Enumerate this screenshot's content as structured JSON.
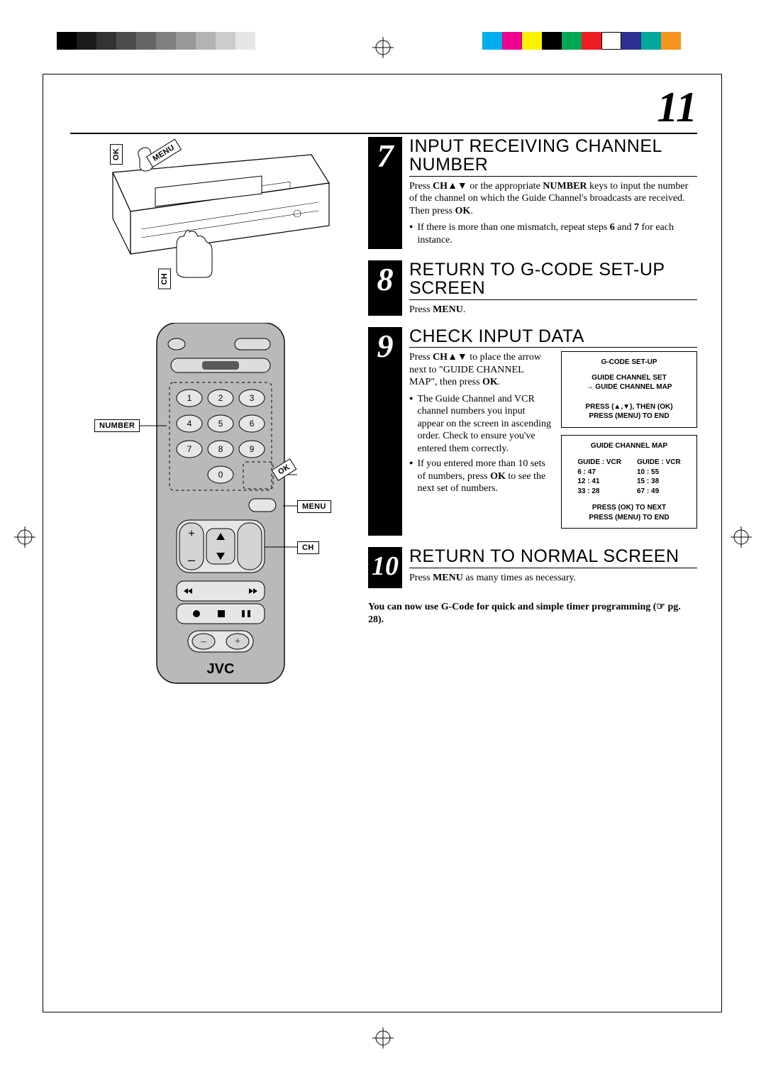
{
  "pageNumber": "11",
  "colorBars": {
    "left": [
      "#000000",
      "#1a1a1a",
      "#333333",
      "#4d4d4d",
      "#666666",
      "#808080",
      "#999999",
      "#b3b3b3",
      "#cccccc",
      "#e6e6e6"
    ],
    "right": [
      "#00aeef",
      "#ec008c",
      "#fff200",
      "#000000",
      "#00a651",
      "#ed1c24",
      "#ffffff",
      "#2e3192",
      "#00a99d",
      "#f7941e"
    ]
  },
  "vcrCallouts": {
    "ok": "OK",
    "menu": "MENU",
    "ch": "CH"
  },
  "remoteCallouts": {
    "number": "NUMBER",
    "ok": "OK",
    "menu": "MENU",
    "ch": "CH"
  },
  "remote": {
    "brand": "JVC"
  },
  "steps": {
    "s7": {
      "num": "7",
      "title": "INPUT RECEIVING CHANNEL NUMBER",
      "body": "Press <b>CH</b>▲▼ or the appropriate <b>NUMBER</b> keys to input the number of the channel on which the Guide Channel's broadcasts are received. Then press <b>OK</b>.",
      "bullet": "If there is more than one mismatch, repeat steps <b>6</b> and <b>7</b> for each instance."
    },
    "s8": {
      "num": "8",
      "title": "RETURN TO G-CODE SET-UP SCREEN",
      "body": "Press <b>MENU</b>."
    },
    "s9": {
      "num": "9",
      "title": "CHECK INPUT DATA",
      "body": "Press <b>CH</b>▲▼ to place the arrow next to \"GUIDE CHANNEL MAP\", then press <b>OK</b>.",
      "bullets": [
        "The Guide Channel and VCR channel numbers you input appear on the screen in ascending order. Check to ensure you've entered them correctly.",
        "If you entered more than 10 sets of numbers, press <b>OK</b> to see the next set of numbers."
      ],
      "osd1": {
        "title": "G-CODE SET-UP",
        "lines": [
          "GUIDE CHANNEL SET",
          "→ GUIDE CHANNEL MAP"
        ],
        "footer": [
          "PRESS (▲,▼), THEN (OK)",
          "PRESS (MENU) TO END"
        ]
      },
      "osd2": {
        "title": "GUIDE CHANNEL MAP",
        "headL": "GUIDE : VCR",
        "headR": "GUIDE : VCR",
        "rowsL": [
          "  6 : 47",
          " 12 : 41",
          " 33 : 28"
        ],
        "rowsR": [
          " 10 : 55",
          " 15 : 38",
          " 67 : 49"
        ],
        "footer": [
          "PRESS (OK) TO NEXT",
          "PRESS (MENU) TO END"
        ]
      }
    },
    "s10": {
      "num": "10",
      "title": "RETURN TO NORMAL SCREEN",
      "body": "Press <b>MENU</b> as many times as necessary."
    }
  },
  "finalNote": "You can now use G-Code for quick and simple timer programming (☞ pg. 28)."
}
